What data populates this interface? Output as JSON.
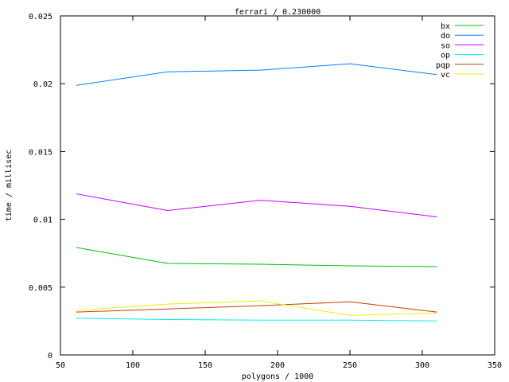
{
  "chart_data": {
    "type": "line",
    "title": "ferrari / 0.230000",
    "xlabel": "polygons / 1000",
    "ylabel": "time / millisec",
    "xlim": [
      50,
      350
    ],
    "ylim": [
      0,
      0.025
    ],
    "xticks": [
      "50",
      "100",
      "150",
      "200",
      "250",
      "300",
      "350"
    ],
    "yticks": [
      "0",
      "0.005",
      "0.01",
      "0.015",
      "0.02",
      "0.025"
    ],
    "grid": false,
    "legend": "top-right",
    "x": [
      61,
      124,
      188,
      250,
      310
    ],
    "series": [
      {
        "name": "bx",
        "color": "#00c000",
        "values": [
          0.00792,
          0.00675,
          0.00669,
          0.00657,
          0.00651
        ]
      },
      {
        "name": "do",
        "color": "#0080ff",
        "values": [
          0.01988,
          0.02088,
          0.021,
          0.02147,
          0.02067
        ]
      },
      {
        "name": "so",
        "color": "#c000ff",
        "values": [
          0.01188,
          0.01065,
          0.01141,
          0.01096,
          0.01018
        ]
      },
      {
        "name": "op",
        "color": "#00eeee",
        "values": [
          0.00271,
          0.00261,
          0.00257,
          0.00257,
          0.00251
        ]
      },
      {
        "name": "pqp",
        "color": "#c04000",
        "values": [
          0.00316,
          0.00339,
          0.00363,
          0.00392,
          0.00316
        ]
      },
      {
        "name": "vc",
        "color": "#eeee00",
        "values": [
          0.00329,
          0.00375,
          0.00398,
          0.00292,
          0.0031
        ]
      }
    ]
  }
}
